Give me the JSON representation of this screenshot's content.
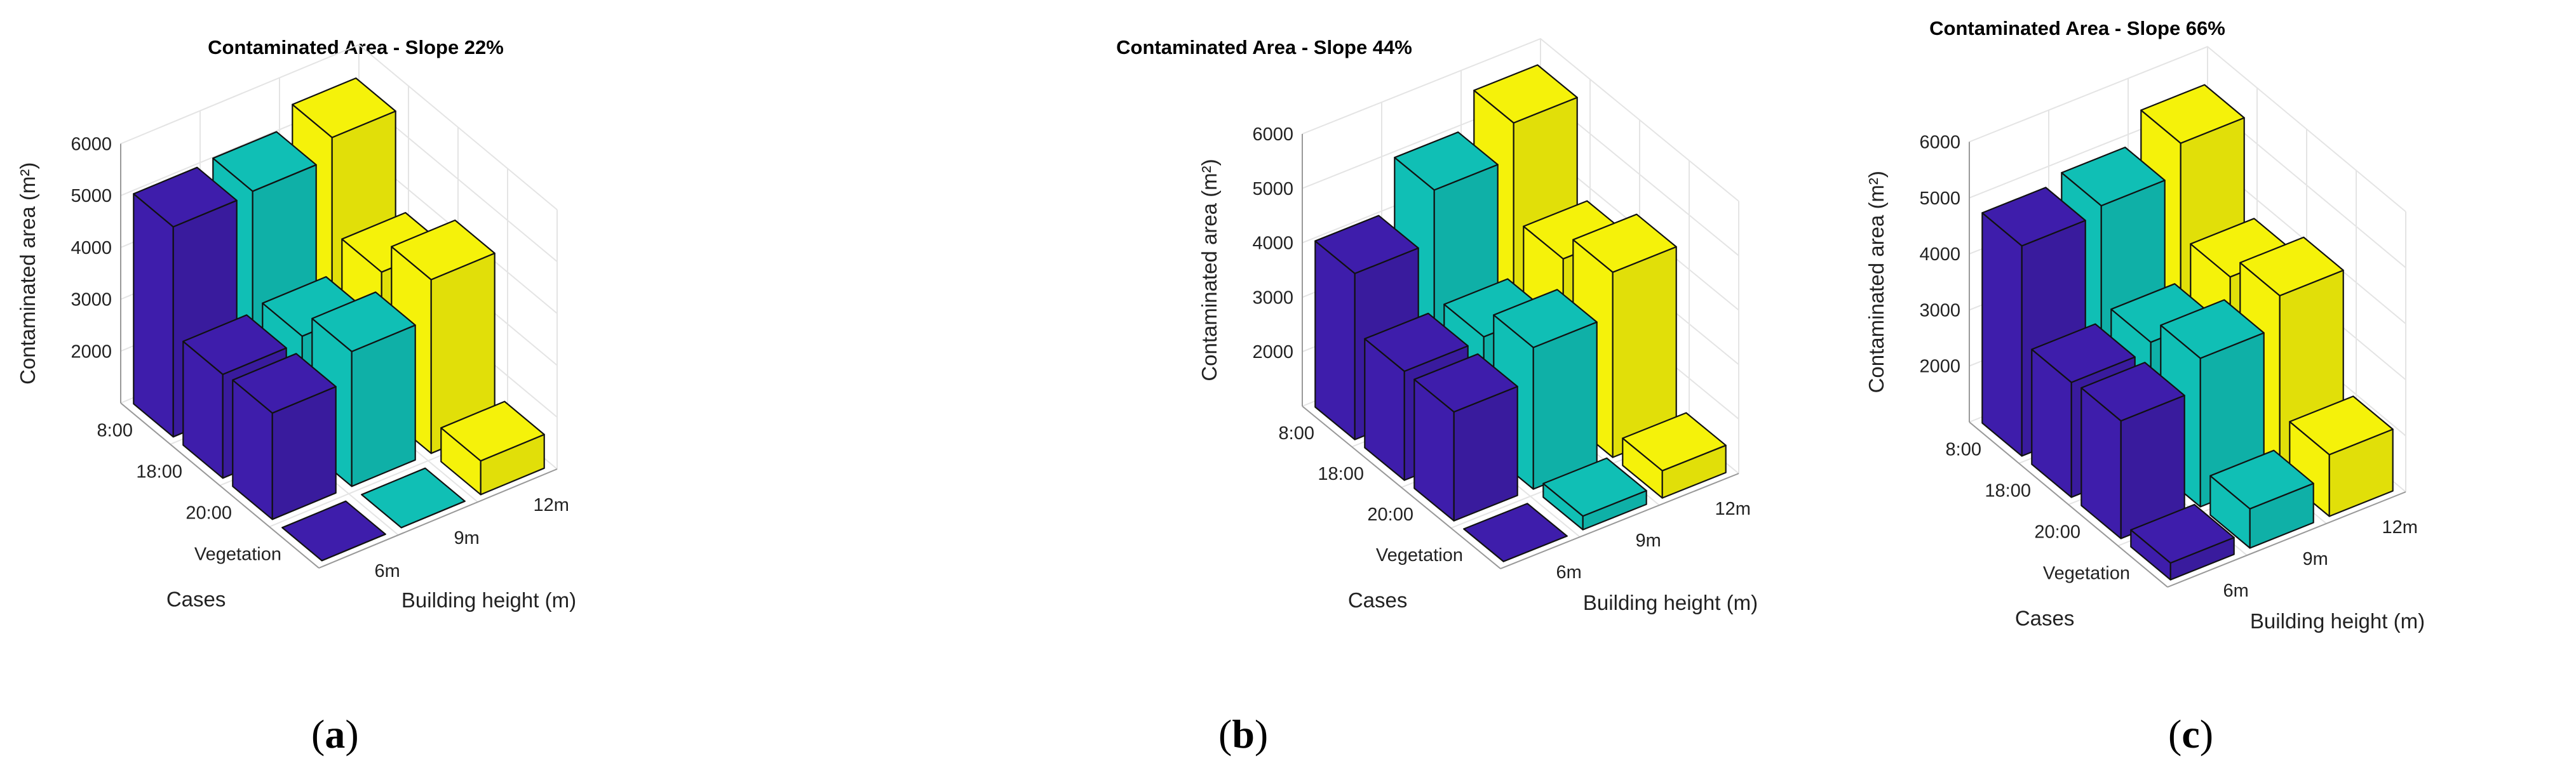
{
  "colors": {
    "purple": "#3e1dab",
    "teal": "#10bfb5",
    "yellow": "#f5f20a"
  },
  "chart_data": [
    {
      "type": "bar3d",
      "panel_label": "a",
      "title": "Contaminated Area - Slope 22%",
      "zlabel": "Contaminated area (m²)",
      "xlabel": "Cases",
      "ylabel": "Building height (m)",
      "zticks": [
        "2000",
        "3000",
        "4000",
        "5000",
        "6000"
      ],
      "zlim": [
        1000,
        6000
      ],
      "cases": [
        "8:00",
        "18:00",
        "20:00",
        "Vegetation"
      ],
      "heights": [
        "6m",
        "9m",
        "12m"
      ],
      "series": [
        {
          "name": "6m",
          "color": "purple",
          "values": [
            5050,
            3000,
            3050,
            1000
          ]
        },
        {
          "name": "9m",
          "color": "teal",
          "values": [
            5100,
            3100,
            3600,
            1000
          ]
        },
        {
          "name": "12m",
          "color": "yellow",
          "values": [
            5500,
            3700,
            4350,
            1650
          ]
        }
      ]
    },
    {
      "type": "bar3d",
      "panel_label": "b",
      "title": "Contaminated Area - Slope 44%",
      "zlabel": "Contaminated area (m²)",
      "xlabel": "Cases",
      "ylabel": "Building height (m)",
      "zticks": [
        "2000",
        "3000",
        "4000",
        "5000",
        "6000"
      ],
      "zlim": [
        1000,
        6000
      ],
      "cases": [
        "8:00",
        "18:00",
        "20:00",
        "Vegetation"
      ],
      "heights": [
        "6m",
        "9m",
        "12m"
      ],
      "series": [
        {
          "name": "6m",
          "color": "purple",
          "values": [
            4050,
            3000,
            3000,
            1000
          ]
        },
        {
          "name": "9m",
          "color": "teal",
          "values": [
            5000,
            3050,
            3600,
            1250
          ]
        },
        {
          "name": "12m",
          "color": "yellow",
          "values": [
            5650,
            3900,
            4400,
            1500
          ]
        }
      ]
    },
    {
      "type": "bar3d",
      "panel_label": "c",
      "title": "Contaminated Area - Slope 66%",
      "zlabel": "Contaminated area (m²)",
      "xlabel": "Cases",
      "ylabel": "Building height (m)",
      "zticks": [
        "2000",
        "3000",
        "4000",
        "5000",
        "6000"
      ],
      "zlim": [
        1000,
        6000
      ],
      "cases": [
        "8:00",
        "18:00",
        "20:00",
        "Vegetation"
      ],
      "heights": [
        "6m",
        "9m",
        "12m"
      ],
      "series": [
        {
          "name": "6m",
          "color": "purple",
          "values": [
            4750,
            3050,
            3100,
            1300
          ]
        },
        {
          "name": "9m",
          "color": "teal",
          "values": [
            4900,
            3200,
            3650,
            1700
          ]
        },
        {
          "name": "12m",
          "color": "yellow",
          "values": [
            5450,
            3800,
            4200,
            2100
          ]
        }
      ]
    }
  ]
}
